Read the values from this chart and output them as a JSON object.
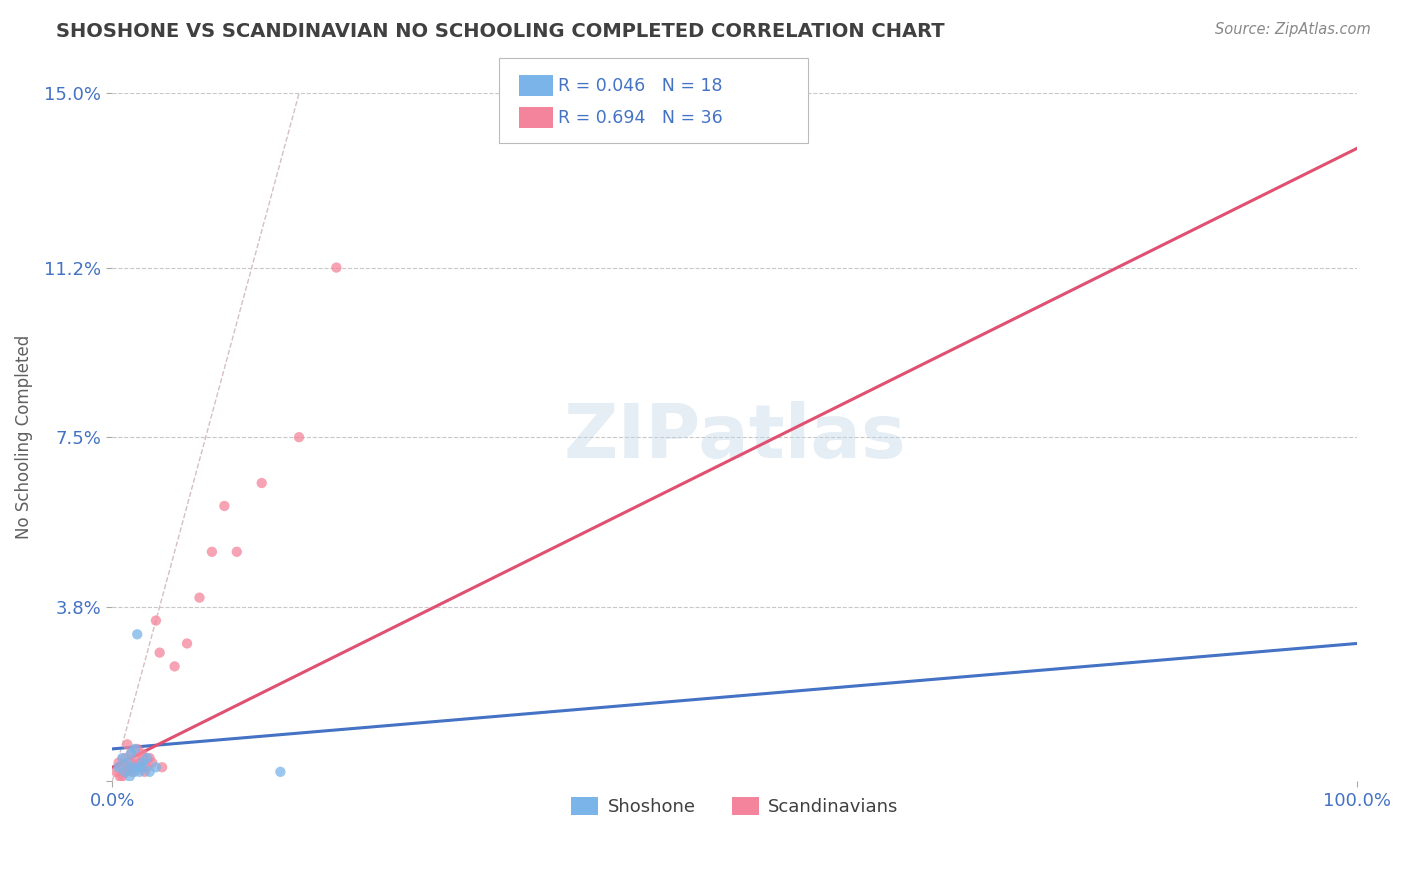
{
  "title": "SHOSHONE VS SCANDINAVIAN NO SCHOOLING COMPLETED CORRELATION CHART",
  "source": "Source: ZipAtlas.com",
  "ylabel": "No Schooling Completed",
  "xlim": [
    0,
    1.0
  ],
  "ylim": [
    0,
    0.15
  ],
  "xticks": [
    0.0,
    1.0
  ],
  "xticklabels": [
    "0.0%",
    "100.0%"
  ],
  "yticks": [
    0.0,
    0.038,
    0.075,
    0.112,
    0.15
  ],
  "yticklabels": [
    "",
    "3.8%",
    "7.5%",
    "11.2%",
    "15.0%"
  ],
  "grid_color": "#c8c8c8",
  "background_color": "#ffffff",
  "shoshone_color": "#7ab4e8",
  "scandinavian_color": "#f4849b",
  "shoshone_line_color": "#4472c4",
  "scandinavian_line_color": "#e05070",
  "ref_line_color": "#d4c0c0",
  "title_color": "#404040",
  "axis_label_color": "#606060",
  "tick_color": "#4472c4",
  "source_color": "#888888",
  "shoshone_x": [
    0.005,
    0.008,
    0.01,
    0.012,
    0.014,
    0.015,
    0.016,
    0.018,
    0.018,
    0.02,
    0.022,
    0.024,
    0.025,
    0.028,
    0.03,
    0.035,
    0.02,
    0.135
  ],
  "shoshone_y": [
    0.003,
    0.005,
    0.002,
    0.004,
    0.001,
    0.006,
    0.003,
    0.002,
    0.007,
    0.003,
    0.002,
    0.004,
    0.003,
    0.005,
    0.002,
    0.003,
    0.032,
    0.002
  ],
  "scandinavian_x": [
    0.003,
    0.005,
    0.006,
    0.008,
    0.01,
    0.011,
    0.012,
    0.013,
    0.015,
    0.015,
    0.016,
    0.018,
    0.018,
    0.02,
    0.022,
    0.023,
    0.024,
    0.025,
    0.026,
    0.028,
    0.03,
    0.032,
    0.035,
    0.038,
    0.04,
    0.05,
    0.06,
    0.07,
    0.08,
    0.09,
    0.1,
    0.12,
    0.15,
    0.18,
    0.01,
    0.008
  ],
  "scandinavian_y": [
    0.002,
    0.004,
    0.001,
    0.003,
    0.005,
    0.002,
    0.008,
    0.003,
    0.006,
    0.004,
    0.002,
    0.005,
    0.003,
    0.007,
    0.004,
    0.003,
    0.006,
    0.005,
    0.002,
    0.003,
    0.005,
    0.004,
    0.035,
    0.028,
    0.003,
    0.025,
    0.03,
    0.04,
    0.05,
    0.06,
    0.05,
    0.065,
    0.075,
    0.112,
    0.002,
    0.001
  ]
}
